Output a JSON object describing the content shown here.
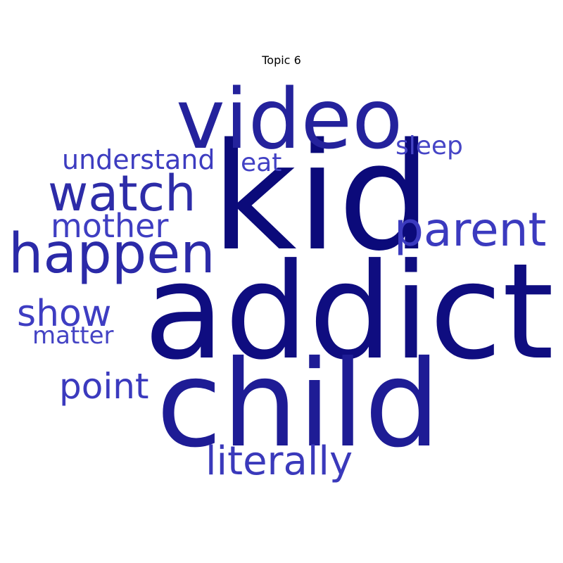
{
  "title": "Topic 6",
  "palette": {
    "darkest": "#0b0a7a",
    "dark": "#1b1a92",
    "mid": "#2b2aa8",
    "light": "#3e3dbe"
  },
  "words": [
    {
      "key": "addict",
      "text": "addict",
      "rank": 1,
      "color": "#0f0d80"
    },
    {
      "key": "kid",
      "text": "kid",
      "rank": 2,
      "color": "#0b0a7a"
    },
    {
      "key": "child",
      "text": "child",
      "rank": 3,
      "color": "#1e1c95"
    },
    {
      "key": "video",
      "text": "video",
      "rank": 4,
      "color": "#24229c"
    },
    {
      "key": "happen",
      "text": "happen",
      "rank": 5,
      "color": "#2b2aa8"
    },
    {
      "key": "watch",
      "text": "watch",
      "rank": 6,
      "color": "#2d2ca8"
    },
    {
      "key": "parent",
      "text": "parent",
      "rank": 7,
      "color": "#3b3abf"
    },
    {
      "key": "literally",
      "text": "literally",
      "rank": 8,
      "color": "#3a39bb"
    },
    {
      "key": "show",
      "text": "show",
      "rank": 9,
      "color": "#3e3dc2"
    },
    {
      "key": "point",
      "text": "point",
      "rank": 10,
      "color": "#3b3abe"
    },
    {
      "key": "mother",
      "text": "mother",
      "rank": 11,
      "color": "#3f3ec2"
    },
    {
      "key": "understand",
      "text": "understand",
      "rank": 12,
      "color": "#3d3cc0"
    },
    {
      "key": "sleep",
      "text": "sleep",
      "rank": 13,
      "color": "#4645c6"
    },
    {
      "key": "eat",
      "text": "eat",
      "rank": 14,
      "color": "#4241c4"
    },
    {
      "key": "matter",
      "text": "matter",
      "rank": 15,
      "color": "#4443c4"
    }
  ]
}
